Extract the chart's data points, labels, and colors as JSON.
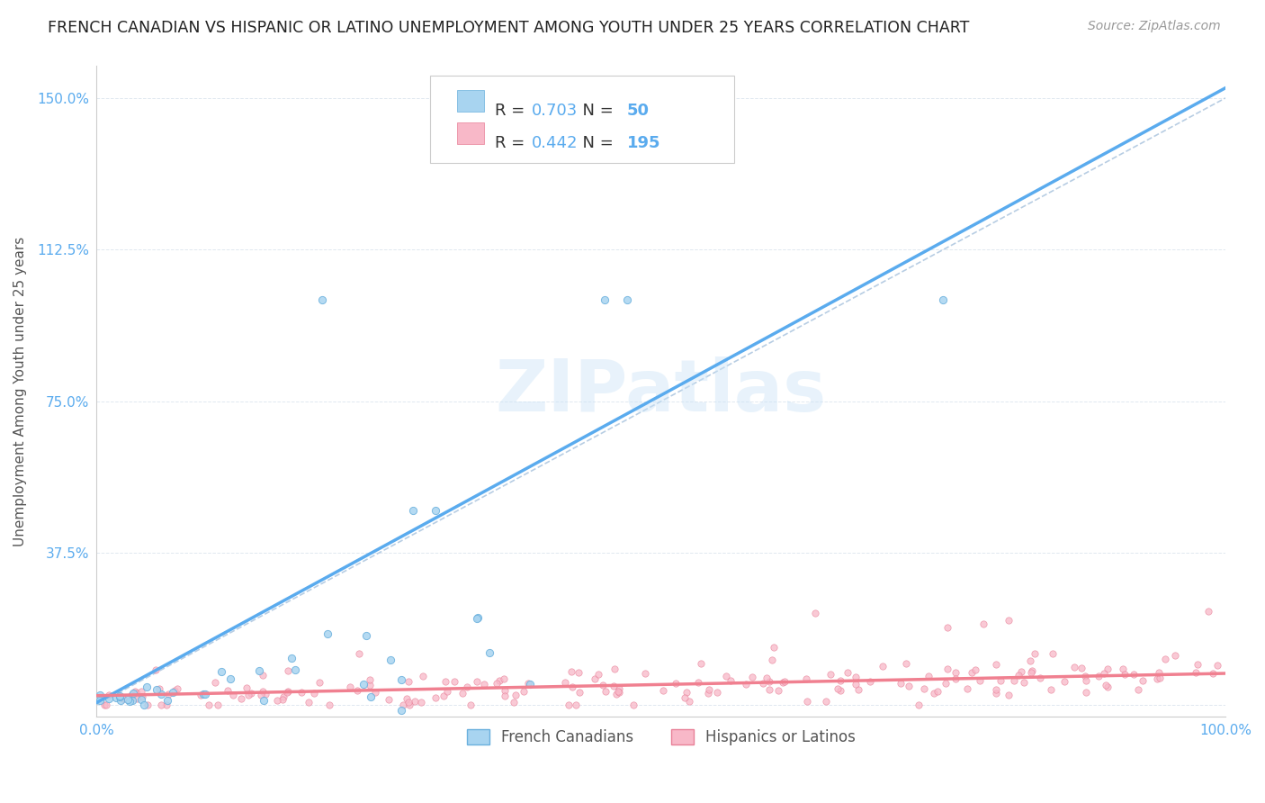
{
  "title": "FRENCH CANADIAN VS HISPANIC OR LATINO UNEMPLOYMENT AMONG YOUTH UNDER 25 YEARS CORRELATION CHART",
  "source": "Source: ZipAtlas.com",
  "ylabel": "Unemployment Among Youth under 25 years",
  "xlim": [
    0,
    1.0
  ],
  "ylim": [
    -0.03,
    1.58
  ],
  "ytick_positions": [
    0.0,
    0.375,
    0.75,
    1.125,
    1.5
  ],
  "ytick_labels": [
    "",
    "37.5%",
    "75.0%",
    "112.5%",
    "150.0%"
  ],
  "xtick_positions": [
    0.0,
    0.25,
    0.5,
    0.75,
    1.0
  ],
  "xtick_labels": [
    "0.0%",
    "",
    "",
    "",
    "100.0%"
  ],
  "watermark": "ZIPatlas",
  "blue_line_color": "#5aabee",
  "pink_line_color": "#f08090",
  "ref_line_color": "#b0c8e0",
  "title_color": "#222222",
  "title_fontsize": 12.5,
  "source_fontsize": 10,
  "axis_tick_color": "#5aabee",
  "R_blue": 0.703,
  "N_blue": 50,
  "R_pink": 0.442,
  "N_pink": 195,
  "blue_scatter_color": "#a8d4f0",
  "blue_edge_color": "#6ab0dd",
  "pink_scatter_color": "#f8b8c8",
  "pink_edge_color": "#e88098",
  "legend_box_color": "#5aabee",
  "slope_blue": 1.52,
  "intercept_blue": 0.005,
  "slope_pink": 0.055,
  "intercept_pink": 0.022
}
